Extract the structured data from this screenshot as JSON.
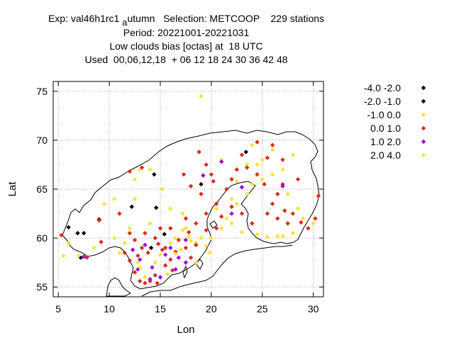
{
  "title": {
    "line1": "Exp: val46h1rc1",
    "line1_sub": "a",
    "line1_rest": "utumn   Selection: METCOOP    229 stations",
    "line2": "Period: 20221001-20221031",
    "line3": "Low clouds bias [octas] at  18 UTC",
    "line4": "Used  00,06,12,18  + 06 12 18 24 30 36 42 48"
  },
  "chart_data": {
    "type": "scatter",
    "xlabel": "Lon",
    "ylabel": "Lat",
    "xlim": [
      4.5,
      31
    ],
    "ylim": [
      54,
      76
    ],
    "xticks": [
      5,
      10,
      15,
      20,
      25,
      30
    ],
    "yticks": [
      55,
      60,
      65,
      70,
      75
    ],
    "grid": true,
    "legend_position": "top-right, outside",
    "series": [
      {
        "name": "-4.0 -2.0",
        "color": "#000000",
        "points": [
          [
            14.4,
            66.5
          ],
          [
            12.2,
            63.2
          ],
          [
            14.6,
            63.1
          ],
          [
            7.5,
            60.5
          ],
          [
            6.9,
            60.5
          ],
          [
            15.4,
            60.4
          ],
          [
            9.0,
            61.9
          ],
          [
            23.4,
            68.8
          ]
        ]
      },
      {
        "name": "-2.0 -1.0",
        "color": "#000000",
        "points": [
          [
            6.0,
            61.1
          ],
          [
            7.2,
            58.0
          ],
          [
            14.1,
            59.0
          ],
          [
            19.0,
            65.5
          ]
        ]
      },
      {
        "name": "-1.0 0.0",
        "color": "#f5e33a",
        "points": [
          [
            19.0,
            74.5
          ],
          [
            14.0,
            67.0
          ],
          [
            12.5,
            66.0
          ],
          [
            10.5,
            64.0
          ],
          [
            15.2,
            65.0
          ],
          [
            16.0,
            63.0
          ],
          [
            17.2,
            62.5
          ],
          [
            14.0,
            61.5
          ],
          [
            12.0,
            61.0
          ],
          [
            10.5,
            60.0
          ],
          [
            8.5,
            59.0
          ],
          [
            6.0,
            59.5
          ],
          [
            5.5,
            58.2
          ],
          [
            7.0,
            58.2
          ],
          [
            11.0,
            58.5
          ],
          [
            12.8,
            57.5
          ],
          [
            13.5,
            56.0
          ],
          [
            15.0,
            58.3
          ],
          [
            17.0,
            58.8
          ],
          [
            18.5,
            57.5
          ],
          [
            19.0,
            60.0
          ],
          [
            20.0,
            60.0
          ],
          [
            21.0,
            61.0
          ],
          [
            21.5,
            62.0
          ],
          [
            22.5,
            63.5
          ],
          [
            23.5,
            64.5
          ],
          [
            24.0,
            65.5
          ],
          [
            25.0,
            66.0
          ],
          [
            26.0,
            66.5
          ],
          [
            27.0,
            67.0
          ],
          [
            28.0,
            68.5
          ],
          [
            27.5,
            64.5
          ],
          [
            28.5,
            63.0
          ],
          [
            29.0,
            62.0
          ],
          [
            28.0,
            60.5
          ],
          [
            27.0,
            60.2
          ],
          [
            26.5,
            60.2
          ],
          [
            25.5,
            60.1
          ],
          [
            24.5,
            60.4
          ],
          [
            23.0,
            60.6
          ],
          [
            22.0,
            61.5
          ],
          [
            20.5,
            63.0
          ],
          [
            22.0,
            64.0
          ],
          [
            22.5,
            65.8
          ],
          [
            24.5,
            67.5
          ],
          [
            21.0,
            68.0
          ],
          [
            26.0,
            69.0
          ],
          [
            24.0,
            69.5
          ],
          [
            25.0,
            68.0
          ],
          [
            23.5,
            67.5
          ],
          [
            17.5,
            61.0
          ],
          [
            18.5,
            59.5
          ],
          [
            19.8,
            58.5
          ],
          [
            11.5,
            59.5
          ],
          [
            9.5,
            63.5
          ],
          [
            13.0,
            67.0
          ],
          [
            30.0,
            61.5
          ],
          [
            16.5,
            60.0
          ],
          [
            16.0,
            59.5
          ],
          [
            14.5,
            57.5
          ],
          [
            15.7,
            56.3
          ],
          [
            12.5,
            64.0
          ],
          [
            17.8,
            60.2
          ]
        ]
      },
      {
        "name": "0.0 1.0",
        "color": "#dd2a1b",
        "points": [
          [
            5.3,
            60.3
          ],
          [
            7.8,
            58.0
          ],
          [
            9.2,
            59.6
          ],
          [
            9.0,
            61.8
          ],
          [
            11.0,
            62.5
          ],
          [
            12.0,
            66.8
          ],
          [
            13.2,
            67.2
          ],
          [
            17.3,
            66.5
          ],
          [
            18.0,
            65.3
          ],
          [
            19.0,
            64.5
          ],
          [
            20.2,
            65.8
          ],
          [
            20.5,
            63.5
          ],
          [
            21.5,
            65.0
          ],
          [
            22.5,
            67.0
          ],
          [
            23.0,
            68.5
          ],
          [
            24.5,
            69.8
          ],
          [
            25.5,
            68.2
          ],
          [
            26.0,
            69.5
          ],
          [
            27.0,
            68.0
          ],
          [
            28.5,
            66.0
          ],
          [
            27.0,
            65.5
          ],
          [
            26.5,
            64.5
          ],
          [
            26.0,
            63.5
          ],
          [
            25.5,
            62.5
          ],
          [
            26.5,
            62.0
          ],
          [
            27.5,
            61.5
          ],
          [
            27.2,
            62.8
          ],
          [
            28.8,
            61.6
          ],
          [
            30.5,
            64.3
          ],
          [
            30.2,
            62.0
          ],
          [
            29.5,
            61.0
          ],
          [
            24.0,
            61.5
          ],
          [
            23.0,
            62.5
          ],
          [
            22.0,
            63.2
          ],
          [
            21.0,
            62.2
          ],
          [
            20.5,
            61.0
          ],
          [
            19.5,
            60.8
          ],
          [
            18.5,
            61.5
          ],
          [
            17.5,
            62.0
          ],
          [
            16.0,
            61.0
          ],
          [
            15.0,
            61.0
          ],
          [
            14.5,
            60.0
          ],
          [
            13.5,
            60.5
          ],
          [
            12.5,
            59.8
          ],
          [
            11.5,
            58.5
          ],
          [
            12.0,
            57.7
          ],
          [
            12.5,
            56.5
          ],
          [
            13.0,
            55.6
          ],
          [
            13.5,
            55.4
          ],
          [
            14.0,
            55.6
          ],
          [
            14.5,
            56.2
          ],
          [
            15.5,
            57.2
          ],
          [
            16.0,
            57.8
          ],
          [
            16.5,
            58.6
          ],
          [
            17.5,
            59.0
          ],
          [
            18.0,
            58.0
          ],
          [
            18.5,
            59.3
          ],
          [
            16.8,
            59.8
          ],
          [
            15.5,
            59.0
          ],
          [
            14.8,
            59.4
          ],
          [
            13.8,
            58.5
          ],
          [
            12.8,
            58.2
          ],
          [
            14.7,
            55.4
          ],
          [
            15.2,
            58.8
          ],
          [
            16.2,
            56.7
          ],
          [
            17.8,
            60.6
          ],
          [
            19.5,
            62.5
          ],
          [
            18.8,
            68.8
          ],
          [
            23.5,
            67.2
          ],
          [
            25.2,
            65.5
          ],
          [
            24.5,
            66.5
          ],
          [
            22.0,
            66.0
          ],
          [
            20.0,
            66.5
          ],
          [
            19.5,
            67.5
          ],
          [
            28.0,
            62.5
          ],
          [
            12.0,
            60.5
          ],
          [
            13.2,
            59.0
          ]
        ]
      },
      {
        "name": "1.0 2.0",
        "color": "#9a00e0",
        "points": [
          [
            7.5,
            58.1
          ],
          [
            19.2,
            66.4
          ],
          [
            21.0,
            67.8
          ],
          [
            23.0,
            65.2
          ],
          [
            27.0,
            65.3
          ],
          [
            22.0,
            62.5
          ],
          [
            13.5,
            59.3
          ],
          [
            12.3,
            58.8
          ],
          [
            13.0,
            57.8
          ],
          [
            14.2,
            57.0
          ],
          [
            15.0,
            56.0
          ],
          [
            16.5,
            56.8
          ],
          [
            16.8,
            58.0
          ],
          [
            17.5,
            57.5
          ],
          [
            17.5,
            59.8
          ],
          [
            16.0,
            59.0
          ],
          [
            15.5,
            58.3
          ],
          [
            14.0,
            55.8
          ],
          [
            12.8,
            56.8
          ]
        ]
      },
      {
        "name": "2.0 4.0",
        "color": "#f5e33a",
        "points": [
          [
            18.0,
            59.7
          ],
          [
            13.0,
            57.0
          ],
          [
            19.5,
            59.2
          ],
          [
            16.5,
            58.4
          ],
          [
            17.2,
            60.8
          ]
        ]
      }
    ]
  }
}
